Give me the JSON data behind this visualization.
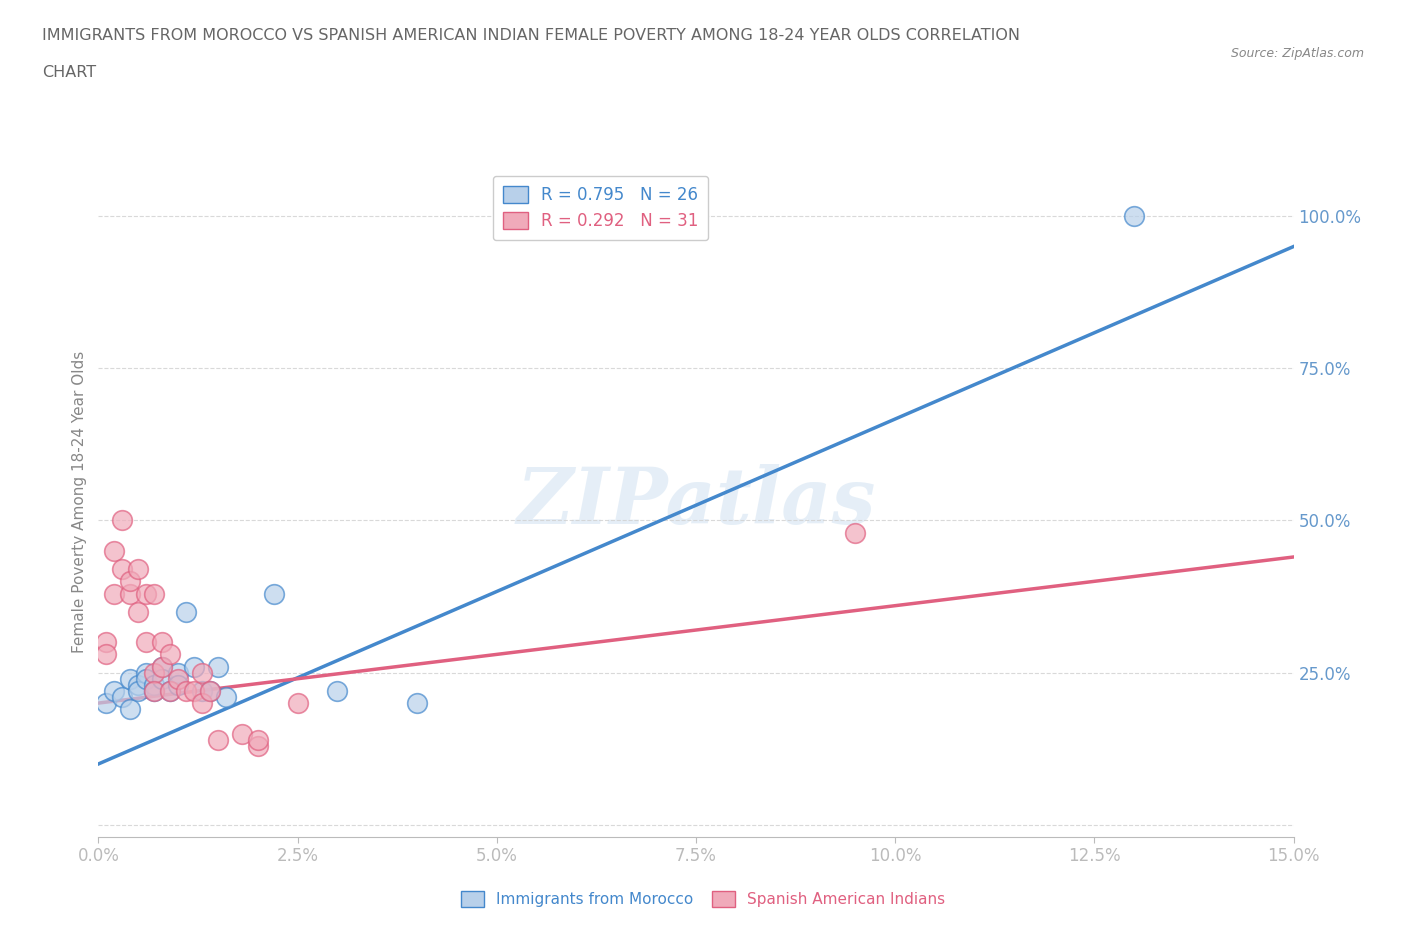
{
  "title_line1": "IMMIGRANTS FROM MOROCCO VS SPANISH AMERICAN INDIAN FEMALE POVERTY AMONG 18-24 YEAR OLDS CORRELATION",
  "title_line2": "CHART",
  "source": "Source: ZipAtlas.com",
  "ylabel": "Female Poverty Among 18-24 Year Olds",
  "xlim": [
    0.0,
    0.15
  ],
  "ylim": [
    -0.02,
    1.08
  ],
  "ytick_positions": [
    0.0,
    0.25,
    0.5,
    0.75,
    1.0
  ],
  "ytick_labels": [
    "",
    "25.0%",
    "50.0%",
    "75.0%",
    "100.0%"
  ],
  "xtick_positions": [
    0.0,
    0.025,
    0.05,
    0.075,
    0.1,
    0.125,
    0.15
  ],
  "xtick_labels": [
    "0.0%",
    "2.5%",
    "5.0%",
    "7.5%",
    "10.0%",
    "12.5%",
    "15.0%"
  ],
  "grid_color": "#d0d0d0",
  "background_color": "#ffffff",
  "watermark": "ZIPatlas",
  "legend_r1": "R = 0.795",
  "legend_n1": "N = 26",
  "legend_r2": "R = 0.292",
  "legend_n2": "N = 31",
  "blue_fill": "#b8d0ea",
  "blue_edge": "#4488cc",
  "pink_fill": "#f0aaba",
  "pink_edge": "#e06080",
  "blue_line_color": "#4488cc",
  "pink_line_color": "#e06080",
  "title_color": "#666666",
  "axis_label_color": "#888888",
  "tick_label_color": "#6699cc",
  "tick_color": "#bbbbbb",
  "blue_scatter_x": [
    0.001,
    0.002,
    0.003,
    0.004,
    0.004,
    0.005,
    0.005,
    0.006,
    0.006,
    0.007,
    0.007,
    0.008,
    0.008,
    0.009,
    0.01,
    0.01,
    0.011,
    0.012,
    0.013,
    0.014,
    0.015,
    0.016,
    0.022,
    0.03,
    0.04,
    0.13
  ],
  "blue_scatter_y": [
    0.2,
    0.22,
    0.21,
    0.24,
    0.19,
    0.23,
    0.22,
    0.25,
    0.24,
    0.23,
    0.22,
    0.26,
    0.24,
    0.22,
    0.25,
    0.23,
    0.35,
    0.26,
    0.22,
    0.22,
    0.26,
    0.21,
    0.38,
    0.22,
    0.2,
    1.0
  ],
  "pink_scatter_x": [
    0.001,
    0.001,
    0.002,
    0.002,
    0.003,
    0.003,
    0.004,
    0.004,
    0.005,
    0.005,
    0.006,
    0.006,
    0.007,
    0.007,
    0.007,
    0.008,
    0.008,
    0.009,
    0.009,
    0.01,
    0.011,
    0.012,
    0.013,
    0.013,
    0.014,
    0.015,
    0.018,
    0.02,
    0.025,
    0.02,
    0.095
  ],
  "pink_scatter_y": [
    0.3,
    0.28,
    0.38,
    0.45,
    0.42,
    0.5,
    0.38,
    0.4,
    0.35,
    0.42,
    0.38,
    0.3,
    0.38,
    0.25,
    0.22,
    0.3,
    0.26,
    0.28,
    0.22,
    0.24,
    0.22,
    0.22,
    0.2,
    0.25,
    0.22,
    0.14,
    0.15,
    0.13,
    0.2,
    0.14,
    0.48
  ],
  "blue_line_x": [
    0.0,
    0.15
  ],
  "blue_line_y": [
    0.1,
    0.95
  ],
  "pink_line_x": [
    0.0,
    0.15
  ],
  "pink_line_y": [
    0.2,
    0.44
  ]
}
